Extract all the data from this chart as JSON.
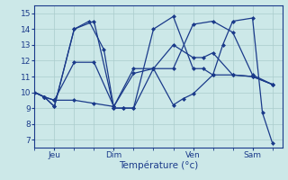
{
  "background_color": "#cce8e8",
  "grid_color": "#aacccc",
  "line_color": "#1a3a8a",
  "title": "Température (°c)",
  "yticks": [
    7,
    8,
    9,
    10,
    11,
    12,
    13,
    14,
    15
  ],
  "ylim": [
    6.5,
    15.5
  ],
  "xlim": [
    0,
    100
  ],
  "xtick_positions": [
    8,
    32,
    64,
    88
  ],
  "xtick_labels": [
    "Jeu",
    "Dim",
    "Ven",
    "Sam"
  ],
  "series": [
    {
      "x": [
        0,
        4,
        8,
        16,
        22,
        28,
        32,
        36,
        40,
        48,
        56,
        60,
        64,
        72,
        76,
        80,
        88,
        92,
        96
      ],
      "y": [
        10.0,
        9.7,
        9.1,
        14.0,
        14.5,
        12.7,
        9.0,
        9.0,
        9.0,
        11.5,
        9.2,
        9.6,
        9.9,
        11.1,
        13.0,
        14.5,
        14.7,
        8.7,
        6.8
      ]
    },
    {
      "x": [
        0,
        4,
        8,
        16,
        24,
        32,
        36,
        40,
        48,
        56,
        64,
        68,
        72,
        80,
        88,
        96
      ],
      "y": [
        10.0,
        9.7,
        9.1,
        14.0,
        14.5,
        9.0,
        9.0,
        9.0,
        14.0,
        14.8,
        11.5,
        11.5,
        11.1,
        11.1,
        11.0,
        10.5
      ]
    },
    {
      "x": [
        0,
        4,
        8,
        16,
        24,
        32,
        40,
        48,
        56,
        64,
        68,
        72,
        80,
        88,
        96
      ],
      "y": [
        10.0,
        9.7,
        9.5,
        9.5,
        9.3,
        9.1,
        11.2,
        11.5,
        13.0,
        12.2,
        12.2,
        12.5,
        11.1,
        11.0,
        10.5
      ]
    },
    {
      "x": [
        0,
        4,
        8,
        16,
        24,
        32,
        40,
        48,
        56,
        64,
        72,
        80,
        88,
        96
      ],
      "y": [
        10.0,
        9.7,
        9.5,
        11.9,
        11.9,
        9.1,
        11.5,
        11.5,
        11.5,
        14.3,
        14.5,
        13.8,
        11.1,
        10.5
      ]
    }
  ]
}
